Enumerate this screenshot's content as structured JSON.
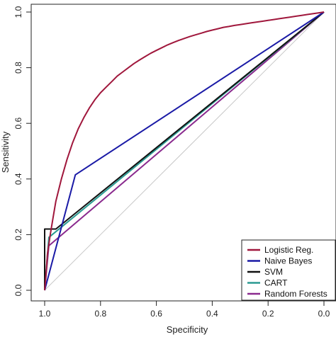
{
  "chart_data": {
    "type": "line",
    "title": "",
    "xlabel": "Specificity",
    "ylabel": "Sensitivity",
    "xlim": [
      1.0,
      0.0
    ],
    "ylim": [
      0.0,
      1.0
    ],
    "x_ticks": [
      "1.0",
      "0.8",
      "0.6",
      "0.4",
      "0.2",
      "0.0"
    ],
    "y_ticks": [
      "0.0",
      "0.2",
      "0.4",
      "0.6",
      "0.8",
      "1.0"
    ],
    "grid": false,
    "legend_position": "bottom-right",
    "reference_line": {
      "from": [
        1.0,
        0.0
      ],
      "to": [
        0.0,
        1.0
      ],
      "color": "#c8c8c8"
    },
    "series": [
      {
        "name": "Logistic Reg.",
        "color": "#a0173c",
        "points": [
          [
            1.0,
            0.0
          ],
          [
            0.995,
            0.06
          ],
          [
            0.99,
            0.13
          ],
          [
            0.98,
            0.2
          ],
          [
            0.97,
            0.26
          ],
          [
            0.96,
            0.32
          ],
          [
            0.94,
            0.4
          ],
          [
            0.92,
            0.47
          ],
          [
            0.9,
            0.53
          ],
          [
            0.88,
            0.58
          ],
          [
            0.86,
            0.62
          ],
          [
            0.84,
            0.655
          ],
          [
            0.82,
            0.685
          ],
          [
            0.8,
            0.71
          ],
          [
            0.78,
            0.73
          ],
          [
            0.76,
            0.75
          ],
          [
            0.74,
            0.77
          ],
          [
            0.72,
            0.785
          ],
          [
            0.7,
            0.8
          ],
          [
            0.68,
            0.815
          ],
          [
            0.66,
            0.828
          ],
          [
            0.64,
            0.84
          ],
          [
            0.62,
            0.852
          ],
          [
            0.6,
            0.862
          ],
          [
            0.58,
            0.872
          ],
          [
            0.56,
            0.882
          ],
          [
            0.54,
            0.89
          ],
          [
            0.52,
            0.898
          ],
          [
            0.5,
            0.905
          ],
          [
            0.48,
            0.912
          ],
          [
            0.46,
            0.918
          ],
          [
            0.44,
            0.924
          ],
          [
            0.42,
            0.93
          ],
          [
            0.4,
            0.935
          ],
          [
            0.38,
            0.94
          ],
          [
            0.36,
            0.945
          ],
          [
            0.34,
            0.948
          ],
          [
            0.32,
            0.952
          ],
          [
            0.3,
            0.955
          ],
          [
            0.28,
            0.958
          ],
          [
            0.26,
            0.961
          ],
          [
            0.24,
            0.964
          ],
          [
            0.22,
            0.967
          ],
          [
            0.2,
            0.97
          ],
          [
            0.18,
            0.973
          ],
          [
            0.16,
            0.976
          ],
          [
            0.14,
            0.979
          ],
          [
            0.12,
            0.982
          ],
          [
            0.1,
            0.985
          ],
          [
            0.08,
            0.988
          ],
          [
            0.06,
            0.991
          ],
          [
            0.04,
            0.994
          ],
          [
            0.02,
            0.997
          ],
          [
            0.0,
            1.0
          ]
        ]
      },
      {
        "name": "Naive Bayes",
        "color": "#1a1aa6",
        "points": [
          [
            1.0,
            0.0
          ],
          [
            0.89,
            0.415
          ],
          [
            0.0,
            1.0
          ]
        ]
      },
      {
        "name": "SVM",
        "color": "#111111",
        "points": [
          [
            1.0,
            0.0
          ],
          [
            1.0,
            0.22
          ],
          [
            0.96,
            0.22
          ],
          [
            0.0,
            1.0
          ]
        ]
      },
      {
        "name": "CART",
        "color": "#2a9a92",
        "points": [
          [
            1.0,
            0.0
          ],
          [
            0.985,
            0.19
          ],
          [
            0.0,
            1.0
          ]
        ]
      },
      {
        "name": "Random Forests",
        "color": "#8a2a8e",
        "points": [
          [
            1.0,
            0.0
          ],
          [
            0.985,
            0.16
          ],
          [
            0.0,
            1.0
          ]
        ]
      }
    ]
  }
}
